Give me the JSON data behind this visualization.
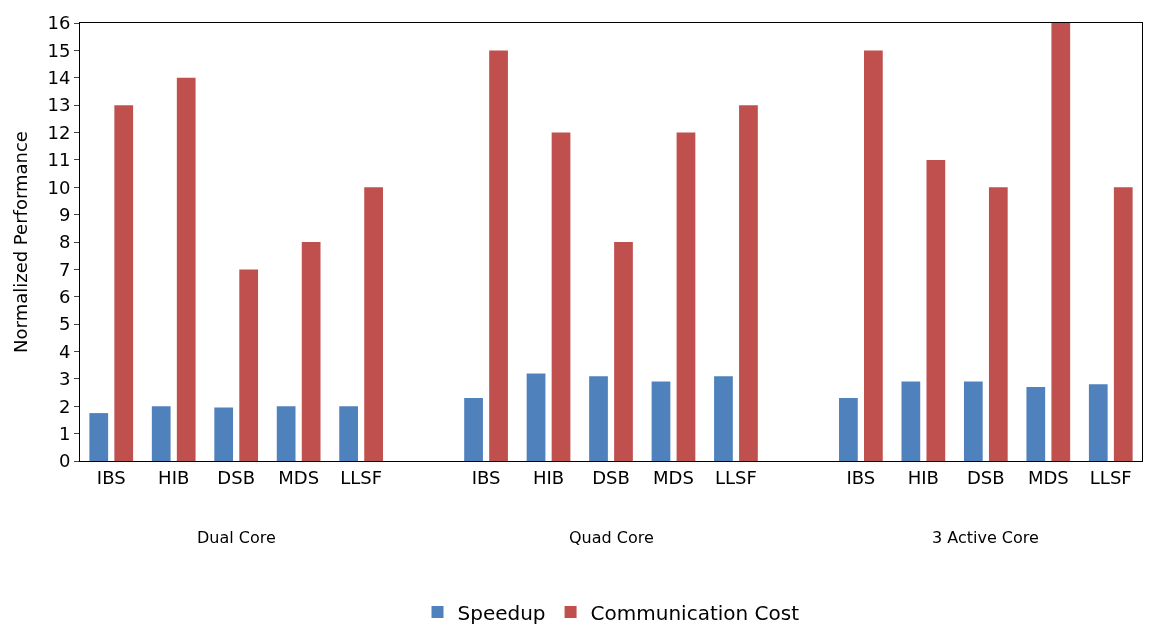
{
  "chart_data": {
    "type": "bar",
    "ylabel": "Normalized Performance",
    "categories": [
      "IBS",
      "HIB",
      "DSB",
      "MDS",
      "LLSF",
      null,
      "IBS",
      "HIB",
      "DSB",
      "MDS",
      "LLSF",
      null,
      "IBS",
      "HIB",
      "DSB",
      "MDS",
      "LLSF"
    ],
    "series": [
      {
        "name": "Speedup",
        "color": "#4f81bd",
        "values": [
          1.75,
          2.0,
          1.95,
          2.0,
          2.0,
          null,
          2.3,
          3.2,
          3.1,
          2.9,
          3.1,
          null,
          2.3,
          2.9,
          2.9,
          2.7,
          2.8
        ]
      },
      {
        "name": "Communication Cost",
        "color": "#c0504d",
        "values": [
          13,
          14,
          7,
          8,
          10,
          null,
          15,
          12,
          8,
          12,
          13,
          null,
          15,
          11,
          10,
          16,
          10
        ]
      }
    ],
    "annotations": [
      "Dual Core",
      "Quad Core",
      "3 Active Core"
    ],
    "ylim": [
      0,
      16
    ],
    "yticks": [
      0,
      1,
      2,
      3,
      4,
      5,
      6,
      7,
      8,
      9,
      10,
      11,
      12,
      13,
      14,
      15,
      16
    ],
    "legend": "bottom"
  }
}
